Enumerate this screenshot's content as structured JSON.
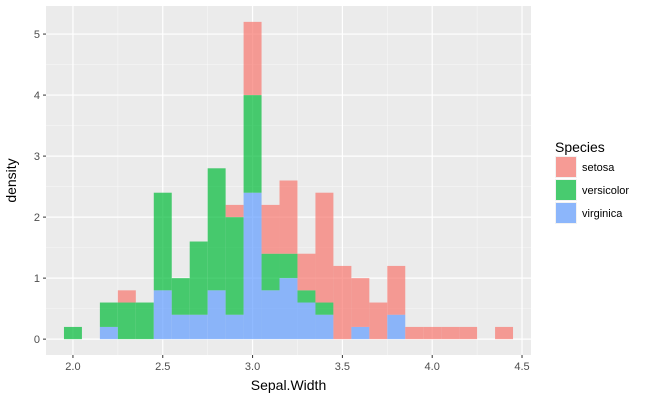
{
  "chart_data": {
    "type": "bar",
    "subtype": "stacked-histogram",
    "title": "",
    "xlabel": "Sepal.Width",
    "ylabel": "density",
    "xlim": [
      1.85,
      4.55
    ],
    "ylim": [
      -0.26,
      5.46
    ],
    "bin_width": 0.1,
    "x_ticks": [
      2.0,
      2.5,
      3.0,
      3.5,
      4.0,
      4.5
    ],
    "x_tick_labels": [
      "2.0",
      "2.5",
      "3.0",
      "3.5",
      "4.0",
      "4.5"
    ],
    "y_ticks": [
      0,
      1,
      2,
      3,
      4,
      5
    ],
    "y_tick_labels": [
      "0",
      "1",
      "2",
      "3",
      "4",
      "5"
    ],
    "grid": true,
    "legend": {
      "title": "Species",
      "position": "right"
    },
    "bin_centers": [
      2.0,
      2.1,
      2.2,
      2.3,
      2.4,
      2.5,
      2.6,
      2.7,
      2.8,
      2.9,
      3.0,
      3.1,
      3.2,
      3.3,
      3.4,
      3.5,
      3.6,
      3.7,
      3.8,
      3.9,
      4.0,
      4.1,
      4.2,
      4.3,
      4.4
    ],
    "series": [
      {
        "name": "virginica",
        "color": "#619CFF",
        "values": [
          0,
          0,
          0.2,
          0,
          0,
          0.8,
          0.4,
          0.4,
          0.8,
          0.4,
          2.4,
          0.8,
          1.0,
          0.6,
          0.4,
          0,
          0.2,
          0,
          0.4,
          0,
          0,
          0,
          0,
          0,
          0
        ]
      },
      {
        "name": "versicolor",
        "color": "#00BA38",
        "values": [
          0.2,
          0,
          0.4,
          0.6,
          0.6,
          1.6,
          0.6,
          1.2,
          2.0,
          1.6,
          1.6,
          0.6,
          0.4,
          0.2,
          0.2,
          0,
          0,
          0,
          0,
          0,
          0,
          0,
          0,
          0,
          0
        ]
      },
      {
        "name": "setosa",
        "color": "#F8766D",
        "values": [
          0,
          0,
          0,
          0.2,
          0,
          0,
          0,
          0,
          0,
          0.2,
          1.2,
          0.8,
          1.2,
          0.6,
          1.8,
          1.2,
          0.8,
          0.6,
          0.8,
          0.2,
          0.2,
          0.2,
          0.2,
          0,
          0.2
        ]
      }
    ],
    "legend_order": [
      "setosa",
      "versicolor",
      "virginica"
    ]
  }
}
